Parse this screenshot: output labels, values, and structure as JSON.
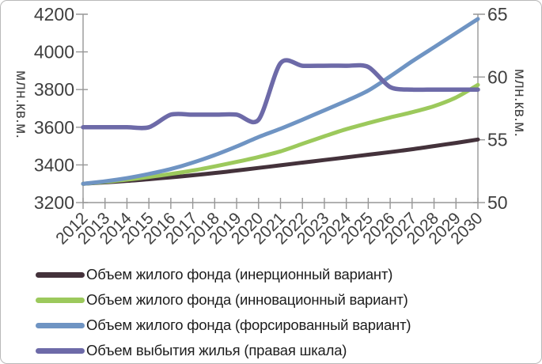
{
  "chart_data": {
    "type": "line",
    "title": "",
    "x": [
      2012,
      2013,
      2014,
      2015,
      2016,
      2017,
      2018,
      2019,
      2020,
      2021,
      2022,
      2023,
      2024,
      2025,
      2026,
      2027,
      2028,
      2029,
      2030
    ],
    "left_axis": {
      "label": "млн.кв.м.",
      "min": 3200,
      "max": 4200,
      "step": 200,
      "ticks": [
        3200,
        3400,
        3600,
        3800,
        4000,
        4200
      ]
    },
    "right_axis": {
      "label": "млн.кв.м.",
      "min": 50,
      "max": 65,
      "step": 5,
      "ticks": [
        50,
        55,
        60,
        65
      ]
    },
    "grid": false,
    "legend_position": "bottom-left",
    "series": [
      {
        "name": "Объем жилого фонда (инерционный вариант)",
        "axis": "left",
        "color": "#44323b",
        "values": [
          3300,
          3307,
          3315,
          3324,
          3334,
          3345,
          3357,
          3370,
          3384,
          3398,
          3412,
          3426,
          3440,
          3454,
          3468,
          3483,
          3500,
          3517,
          3535
        ]
      },
      {
        "name": "Объем жилого фонда (инновационный вариант)",
        "axis": "left",
        "color": "#9cc95c",
        "values": [
          3300,
          3310,
          3322,
          3336,
          3352,
          3370,
          3392,
          3416,
          3442,
          3472,
          3512,
          3552,
          3590,
          3622,
          3652,
          3680,
          3712,
          3758,
          3825
        ]
      },
      {
        "name": "Объем жилого фонда (форсированный вариант)",
        "axis": "left",
        "color": "#6f94c3",
        "values": [
          3300,
          3313,
          3330,
          3352,
          3378,
          3412,
          3452,
          3498,
          3548,
          3592,
          3640,
          3690,
          3740,
          3795,
          3870,
          3950,
          4025,
          4100,
          4175
        ]
      },
      {
        "name": "Объем выбытия жилья (правая шкала)",
        "axis": "right",
        "color": "#6d6aa8",
        "values": [
          56.0,
          56.0,
          56.0,
          56.0,
          57.0,
          57.0,
          57.0,
          57.0,
          56.6,
          61.1,
          60.9,
          60.9,
          60.9,
          60.8,
          59.2,
          59.0,
          59.0,
          59.0,
          59.0
        ]
      }
    ],
    "styling": {
      "axis_color": "#969696",
      "tick_label_color": "#3f3f3f",
      "legend_text_color": "#1d1d1d",
      "background": "#ffffff",
      "border_color": "#b9b9b9"
    }
  }
}
